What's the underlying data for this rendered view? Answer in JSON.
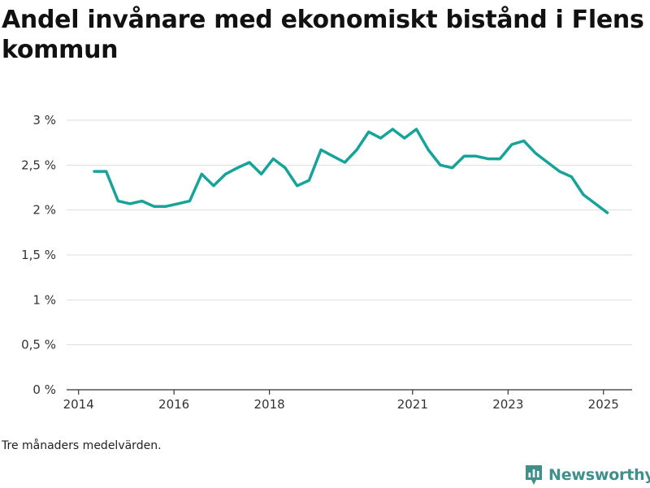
{
  "header": {
    "title": "Andel invånare med ekonomiskt bistånd i Flens kommun"
  },
  "footer": {
    "note": "Tre månaders medelvärden.",
    "brand_name": "Newsworthy",
    "brand_icon": "bar-chart-badge-icon"
  },
  "colors": {
    "line": "#17a398",
    "grid": "#dddddd",
    "axis": "#333333",
    "brand": "#3f8f8b"
  },
  "chart_data": {
    "type": "line",
    "title": "Andel invånare med ekonomiskt bistånd i Flens kommun",
    "xlabel": "",
    "ylabel": "",
    "x_ticks": [
      {
        "value": 2014.0,
        "label": "2014"
      },
      {
        "value": 2016.0,
        "label": "2016"
      },
      {
        "value": 2018.0,
        "label": "2018"
      },
      {
        "value": 2021.0,
        "label": "2021"
      },
      {
        "value": 2023.0,
        "label": "2023"
      },
      {
        "value": 2025.0,
        "label": "2025"
      }
    ],
    "y_ticks": [
      {
        "value": 0,
        "label": "0 %"
      },
      {
        "value": 0.5,
        "label": "0,5 %"
      },
      {
        "value": 1,
        "label": "1 %"
      },
      {
        "value": 1.5,
        "label": "1,5 %"
      },
      {
        "value": 2,
        "label": "2 %"
      },
      {
        "value": 2.5,
        "label": "2,5 %"
      },
      {
        "value": 3,
        "label": "3 %"
      }
    ],
    "xlim": [
      2013.75,
      2025.6
    ],
    "ylim": [
      0,
      3.15
    ],
    "grid": true,
    "unit": "%",
    "series": [
      {
        "x": [
          2014.33,
          2014.58,
          2014.83,
          2015.08,
          2015.33,
          2015.58,
          2015.83,
          2016.08,
          2016.33,
          2016.58,
          2016.83,
          2017.08,
          2017.33,
          2017.58,
          2017.83,
          2018.08,
          2018.33,
          2018.58,
          2018.83,
          2019.08,
          2019.33,
          2019.58,
          2019.83,
          2020.08,
          2020.33,
          2020.58,
          2020.83,
          2021.08,
          2021.33,
          2021.58,
          2021.83,
          2022.08,
          2022.33,
          2022.58,
          2022.83,
          2023.08,
          2023.33,
          2023.58,
          2023.83,
          2024.08,
          2024.33,
          2024.58,
          2024.83,
          2025.08
        ],
        "y": [
          2.43,
          2.43,
          2.1,
          2.07,
          2.1,
          2.04,
          2.04,
          2.07,
          2.1,
          2.4,
          2.27,
          2.4,
          2.47,
          2.53,
          2.4,
          2.57,
          2.47,
          2.27,
          2.33,
          2.67,
          2.6,
          2.53,
          2.67,
          2.87,
          2.8,
          2.9,
          2.8,
          2.9,
          2.67,
          2.5,
          2.47,
          2.6,
          2.6,
          2.57,
          2.57,
          2.73,
          2.77,
          2.63,
          2.53,
          2.43,
          2.37,
          2.17,
          2.07,
          1.97
        ]
      }
    ]
  }
}
